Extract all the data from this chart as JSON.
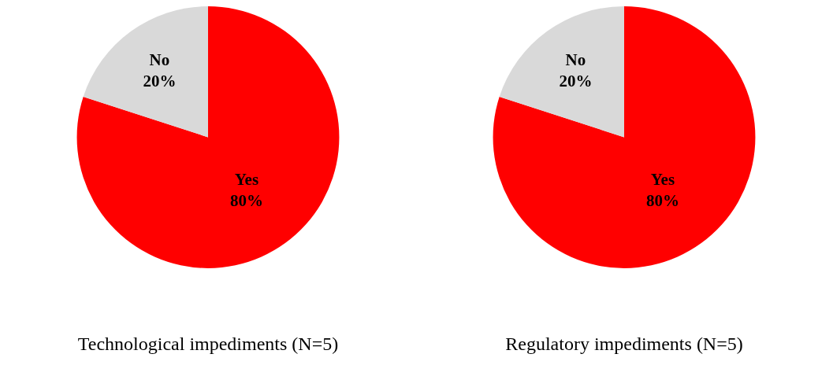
{
  "chart_data": [
    {
      "type": "pie",
      "title": "Technological impediments (N=5)",
      "categories": [
        "Yes",
        "No"
      ],
      "values": [
        80,
        20
      ],
      "value_labels": [
        "80%",
        "20%"
      ],
      "colors": [
        "#ff0000",
        "#d9d9d9"
      ]
    },
    {
      "type": "pie",
      "title": "Regulatory impediments (N=5)",
      "categories": [
        "Yes",
        "No"
      ],
      "values": [
        80,
        20
      ],
      "value_labels": [
        "80%",
        "20%"
      ],
      "colors": [
        "#ff0000",
        "#d9d9d9"
      ]
    }
  ]
}
